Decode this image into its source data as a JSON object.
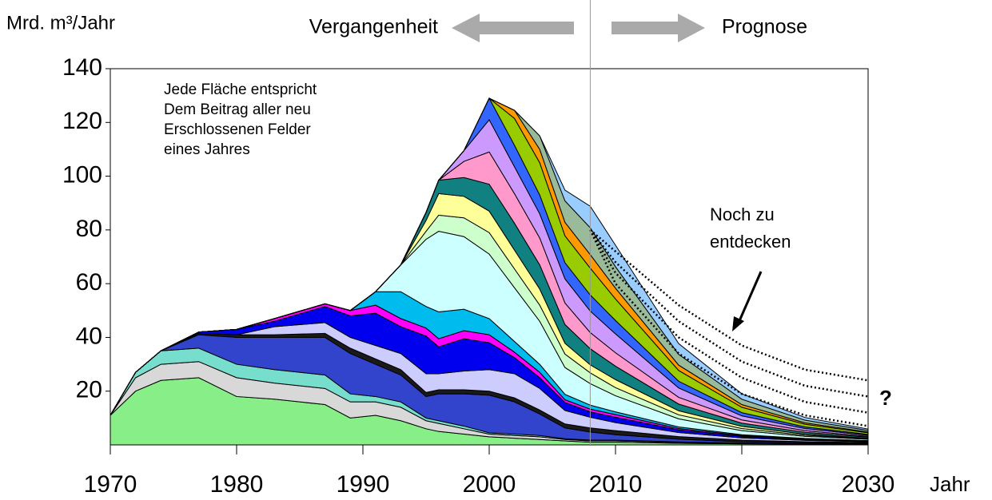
{
  "chart_data": {
    "type": "stacked_area",
    "y_label": "Mrd. m³/Jahr",
    "x_label": "Jahr",
    "past_label": "Vergangenheit",
    "forecast_label": "Prognose",
    "divider_x": 2008,
    "annotation": [
      "Jede Fläche entspricht",
      "Dem Beitrag aller neu",
      "Erschlossenen Felder",
      "eines Jahres"
    ],
    "undiscovered_label": [
      "Noch zu",
      "entdecken"
    ],
    "question_mark": "?",
    "x": [
      1970,
      1972,
      1974,
      1977,
      1980,
      1983,
      1987,
      1989,
      1991,
      1993,
      1995,
      1996,
      1998,
      2000,
      2002,
      2004,
      2006,
      2008,
      2010,
      2015,
      2020,
      2025,
      2030
    ],
    "series": [
      {
        "color": "#88ee88",
        "values": [
          11,
          20,
          24,
          25,
          18,
          17,
          15,
          10,
          11,
          9,
          6,
          5,
          4,
          3,
          2.5,
          2,
          1.5,
          1,
          1,
          0.6,
          0.4,
          0.3,
          0.2
        ]
      },
      {
        "color": "#d8d8d8",
        "values": [
          0,
          5,
          6,
          6,
          7,
          6,
          6,
          6,
          5,
          5,
          3,
          3,
          2,
          1,
          1,
          1,
          0.5,
          0.5,
          0.5,
          0.3,
          0.2,
          0.1,
          0.1
        ]
      },
      {
        "color": "#77ddcc",
        "values": [
          0,
          2,
          5,
          5,
          5,
          5,
          5,
          3,
          2,
          2,
          1,
          1,
          1,
          0.5,
          0.5,
          0.5,
          0.3,
          0.3,
          0.3,
          0.2,
          0.1,
          0.1,
          0.1
        ]
      },
      {
        "color": "#3344cc",
        "values": [
          0,
          0,
          0,
          5,
          10,
          12,
          14,
          15,
          12,
          10,
          8,
          10,
          12,
          14,
          12,
          8,
          4,
          3,
          2,
          1,
          0.5,
          0.3,
          0.2
        ]
      },
      {
        "color": "#1a1a1a",
        "values": [
          0,
          0,
          0,
          0.5,
          1,
          1,
          1.5,
          2,
          2,
          2,
          1.5,
          1.5,
          1.5,
          1.5,
          1.5,
          1.5,
          1.5,
          1.5,
          1.5,
          1,
          0.6,
          0.4,
          0.3
        ]
      },
      {
        "color": "#ccccff",
        "values": [
          0,
          0,
          0,
          0,
          0,
          3,
          4,
          4,
          5,
          6,
          7,
          6,
          7,
          8,
          9,
          8,
          5,
          4,
          3,
          1.5,
          0.8,
          0.5,
          0.3
        ]
      },
      {
        "color": "#0000ee",
        "values": [
          0,
          0,
          0,
          0.5,
          2,
          2,
          6,
          8,
          12,
          10,
          14,
          10,
          12,
          10,
          6,
          4,
          3,
          2,
          2,
          1,
          0.6,
          0.3,
          0.2
        ]
      },
      {
        "color": "#ff00ff",
        "values": [
          0,
          0,
          0,
          0,
          0,
          1,
          1,
          2,
          3,
          3,
          3,
          3,
          3,
          3,
          2,
          2,
          1,
          1,
          1,
          0.5,
          0.3,
          0.2,
          0.1
        ]
      },
      {
        "color": "#00bbee",
        "values": [
          0,
          0,
          0,
          0,
          0,
          0,
          0,
          0,
          5,
          10,
          8,
          10,
          8,
          6,
          4,
          3,
          2,
          1.5,
          1,
          0.6,
          0.3,
          0.2,
          0.1
        ]
      },
      {
        "color": "#ccffff",
        "values": [
          0,
          0,
          0,
          0,
          0,
          0,
          0,
          0,
          0,
          10,
          25,
          30,
          27,
          24,
          20,
          16,
          10,
          8,
          6,
          3,
          1.5,
          0.8,
          0.5
        ]
      },
      {
        "color": "#ccffcc",
        "values": [
          0,
          0,
          0,
          0,
          0,
          0,
          0,
          0,
          0,
          0,
          3,
          6,
          7,
          8,
          7,
          6,
          5,
          4,
          3,
          1.5,
          0.8,
          0.4,
          0.2
        ]
      },
      {
        "color": "#ffff99",
        "values": [
          0,
          0,
          0,
          0,
          0,
          0,
          0,
          0,
          0,
          0,
          4,
          8,
          8,
          8,
          7,
          6,
          4,
          3,
          3,
          1.5,
          0.8,
          0.4,
          0.2
        ]
      },
      {
        "color": "#118080",
        "values": [
          0,
          0,
          0,
          0,
          0,
          0,
          0,
          0,
          0,
          0,
          3,
          5,
          7,
          10,
          10,
          9,
          7,
          6,
          5,
          2.5,
          1.2,
          0.7,
          0.4
        ]
      },
      {
        "color": "#ff99cc",
        "values": [
          0,
          0,
          0,
          0,
          0,
          0,
          0,
          0,
          0,
          0,
          0,
          0,
          6,
          12,
          11,
          10,
          8,
          6,
          5,
          2.5,
          1.2,
          0.6,
          0.3
        ]
      },
      {
        "color": "#cc99ff",
        "values": [
          0,
          0,
          0,
          0,
          0,
          0,
          0,
          0,
          0,
          0,
          0,
          0,
          4,
          12,
          10,
          9,
          9,
          8,
          7,
          3.5,
          1.5,
          0.8,
          0.4
        ]
      },
      {
        "color": "#3366ff",
        "values": [
          0,
          0,
          0,
          0,
          0,
          0,
          0,
          0,
          0,
          0,
          0,
          0,
          0,
          8,
          8,
          7,
          6,
          6,
          5,
          2.5,
          1.2,
          0.6,
          0.3
        ]
      },
      {
        "color": "#99cc00",
        "values": [
          0,
          0,
          0,
          0,
          0,
          0,
          0,
          0,
          0,
          0,
          0,
          0,
          0,
          0,
          10,
          12,
          10,
          10,
          8,
          4,
          2,
          1,
          0.6
        ]
      },
      {
        "color": "#ff9900",
        "values": [
          0,
          0,
          0,
          0,
          0,
          0,
          0,
          0,
          0,
          0,
          0,
          0,
          0,
          0,
          3,
          5,
          5,
          5,
          4,
          2,
          1,
          0.5,
          0.3
        ]
      },
      {
        "color": "#99bb99",
        "values": [
          0,
          0,
          0,
          0,
          0,
          0,
          0,
          0,
          0,
          0,
          0,
          0,
          0,
          0,
          0,
          5,
          8,
          10,
          8,
          4,
          2,
          1,
          0.6
        ]
      },
      {
        "color": "#99ccff",
        "values": [
          0,
          0,
          0,
          0,
          0,
          0,
          0,
          0,
          0,
          0,
          0,
          0,
          0,
          0,
          0,
          0,
          4,
          8,
          8,
          4,
          2,
          1,
          0.5
        ]
      }
    ],
    "projection_x": [
      2008,
      2010,
      2015,
      2020,
      2025,
      2030
    ],
    "projections": [
      [
        80,
        72,
        52,
        37,
        28,
        24
      ],
      [
        80,
        68,
        46,
        31,
        22,
        18
      ],
      [
        80,
        64,
        40,
        25,
        16,
        12
      ],
      [
        80,
        60,
        34,
        19,
        11,
        7
      ]
    ],
    "xlim": [
      1970,
      2030
    ],
    "xticks": [
      1970,
      1980,
      1990,
      2000,
      2010,
      2020,
      2030
    ],
    "ylim": [
      0,
      140
    ],
    "yticks": [
      20,
      40,
      60,
      80,
      100,
      120,
      140
    ]
  }
}
